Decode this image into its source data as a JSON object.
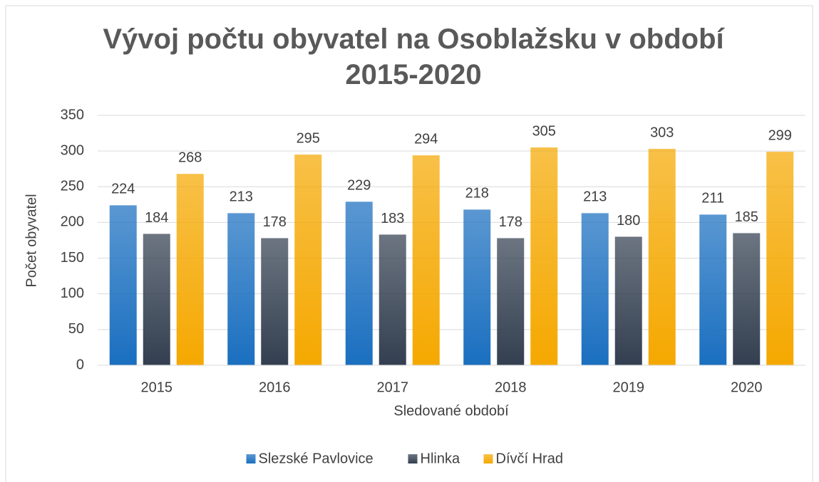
{
  "chart_data": {
    "type": "bar",
    "title": "Vývoj počtu obyvatel na Osoblažsku v období 2015-2020",
    "x_label": "Sledované období",
    "y_label": "Počet obyvatel",
    "categories": [
      "2015",
      "2016",
      "2017",
      "2018",
      "2019",
      "2020"
    ],
    "series": [
      {
        "name": "Slezské Pavlovice",
        "color": "#1a6fc0",
        "values": [
          224,
          213,
          229,
          218,
          213,
          211
        ]
      },
      {
        "name": "Hlinka",
        "color": "#333f50",
        "values": [
          184,
          178,
          183,
          178,
          180,
          185
        ]
      },
      {
        "name": "Dívčí Hrad",
        "color": "#f5a800",
        "values": [
          268,
          295,
          294,
          305,
          303,
          299
        ]
      }
    ],
    "ylim": [
      0,
      350
    ],
    "yticks": [
      0,
      50,
      100,
      150,
      200,
      250,
      300,
      350
    ],
    "grid": true,
    "legend": "bottom"
  }
}
